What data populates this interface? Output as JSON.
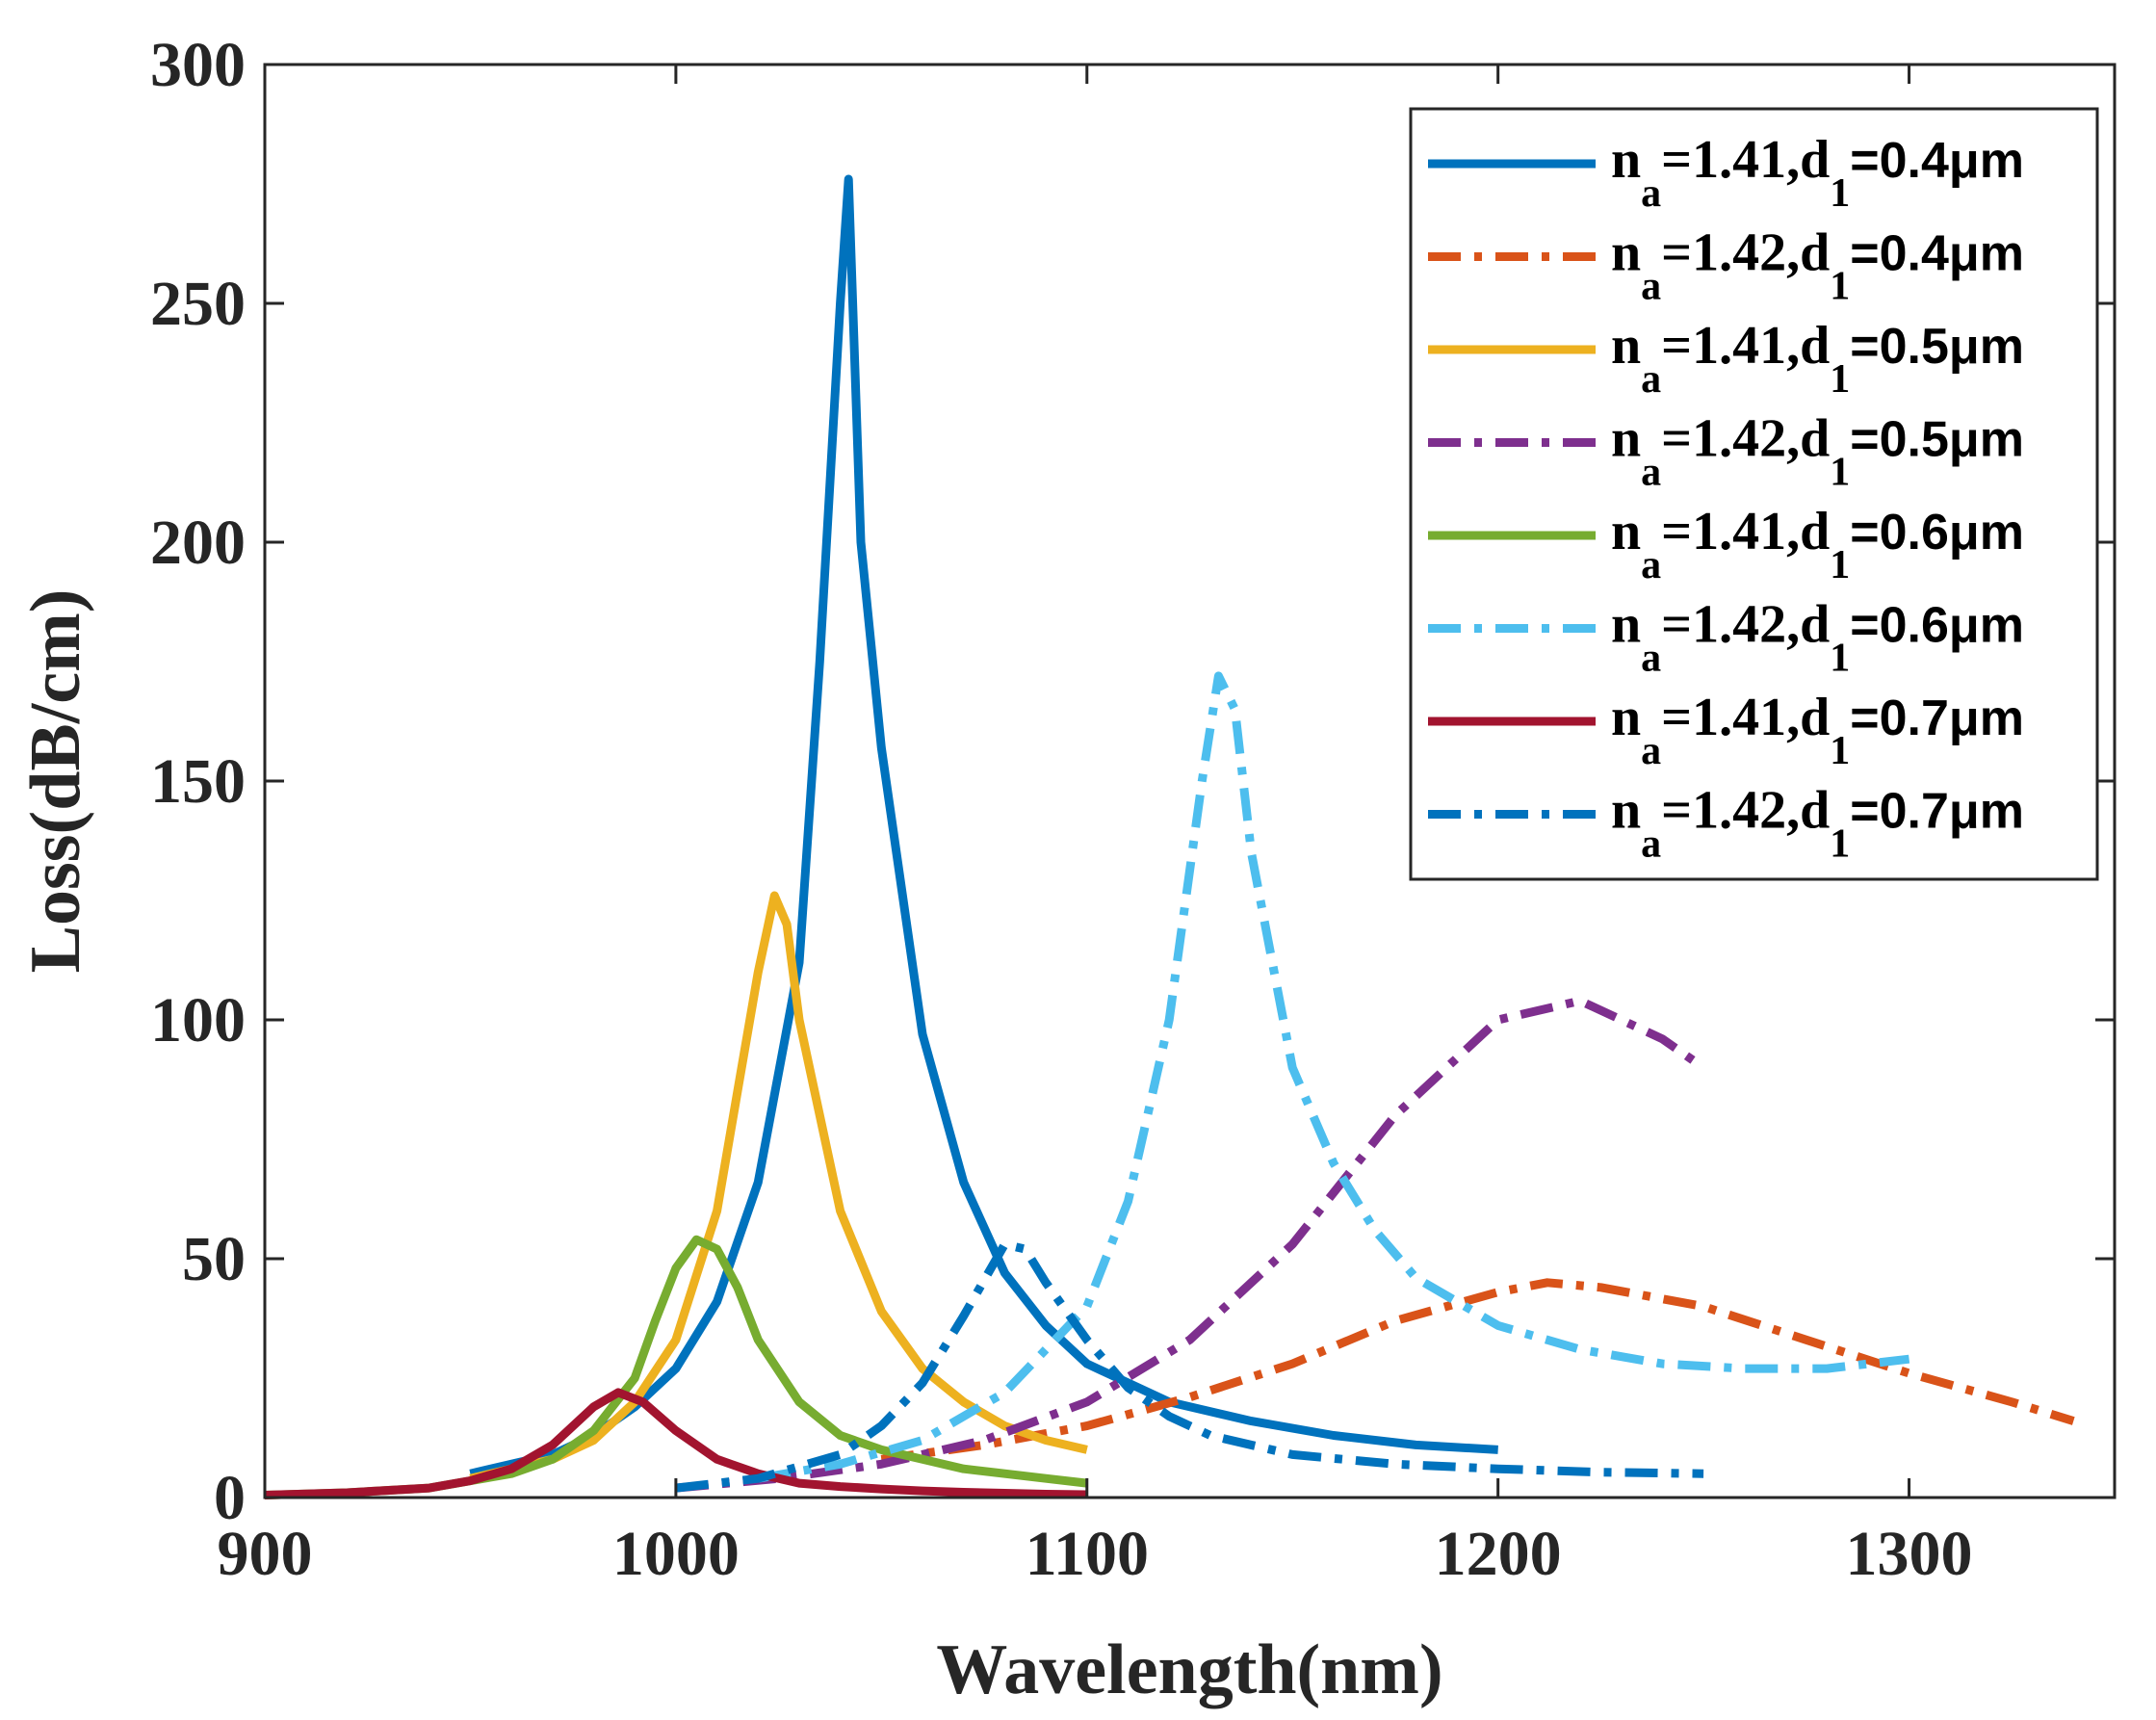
{
  "chart_data": {
    "type": "line",
    "title": "",
    "xlabel": "Wavelength(nm)",
    "ylabel": "Loss(dB/cm)",
    "xlim": [
      900,
      1350
    ],
    "ylim": [
      0,
      300
    ],
    "xticks": [
      900,
      1000,
      1100,
      1200,
      1300
    ],
    "yticks": [
      0,
      50,
      100,
      150,
      200,
      250,
      300
    ],
    "grid": false,
    "legend_position": "top-right",
    "series": [
      {
        "name": "n_a=1.41,d_1=0.4μm",
        "legend": {
          "n": "n",
          "n_sub": "a",
          "eq1": "=1.41,d",
          "d_sub": "1",
          "val": "=0.4μm"
        },
        "color": "#0072BD",
        "dash": "solid",
        "x": [
          950,
          970,
          980,
          990,
          1000,
          1010,
          1020,
          1030,
          1035,
          1040,
          1042,
          1045,
          1050,
          1060,
          1070,
          1080,
          1090,
          1100,
          1120,
          1140,
          1160,
          1180,
          1200
        ],
        "y": [
          5,
          9,
          13,
          19,
          27,
          41,
          66,
          112,
          175,
          250,
          276,
          200,
          157,
          97,
          66,
          47,
          36,
          28,
          20,
          16,
          13,
          11,
          10
        ]
      },
      {
        "name": "n_a=1.42,d_1=0.4μm",
        "legend": {
          "n": "n",
          "n_sub": "a",
          "eq1": "=1.42,d",
          "d_sub": "1",
          "val": "=0.4μm"
        },
        "color": "#D95319",
        "dash": "dashdot",
        "x": [
          1050,
          1075,
          1100,
          1125,
          1150,
          1175,
          1200,
          1212,
          1225,
          1250,
          1275,
          1300,
          1325,
          1340
        ],
        "y": [
          8,
          11,
          15,
          21,
          28,
          37,
          43,
          45,
          44,
          40,
          33,
          26,
          20,
          16
        ]
      },
      {
        "name": "n_a=1.41,d_1=0.5μm",
        "legend": {
          "n": "n",
          "n_sub": "a",
          "eq1": "=1.41,d",
          "d_sub": "1",
          "val": "=0.5μm"
        },
        "color": "#EDB120",
        "dash": "solid",
        "x": [
          950,
          970,
          980,
          990,
          1000,
          1010,
          1015,
          1020,
          1024,
          1027,
          1030,
          1040,
          1050,
          1060,
          1070,
          1080,
          1090,
          1100
        ],
        "y": [
          4,
          8,
          12,
          20,
          33,
          60,
          85,
          110,
          126,
          120,
          100,
          60,
          39,
          27,
          20,
          15,
          12,
          10
        ]
      },
      {
        "name": "n_a=1.42,d_1=0.5μm",
        "legend": {
          "n": "n",
          "n_sub": "a",
          "eq1": "=1.42,d",
          "d_sub": "1",
          "val": "=0.5μm"
        },
        "color": "#7E2F8E",
        "dash": "dashdot",
        "x": [
          1000,
          1025,
          1050,
          1075,
          1100,
          1125,
          1150,
          1175,
          1200,
          1220,
          1240,
          1250
        ],
        "y": [
          2,
          4,
          7,
          12,
          20,
          33,
          53,
          80,
          100,
          104,
          96,
          90
        ]
      },
      {
        "name": "n_a=1.41,d_1=0.6μm",
        "legend": {
          "n": "n",
          "n_sub": "a",
          "eq1": "=1.41,d",
          "d_sub": "1",
          "val": "=0.6μm"
        },
        "color": "#77AC30",
        "dash": "solid",
        "x": [
          900,
          920,
          940,
          960,
          970,
          980,
          990,
          995,
          1000,
          1005,
          1010,
          1015,
          1020,
          1030,
          1040,
          1050,
          1060,
          1070,
          1080,
          1090,
          1100
        ],
        "y": [
          0.5,
          1,
          2,
          5,
          8,
          14,
          25,
          37,
          48,
          54,
          52,
          44,
          33,
          20,
          13,
          10,
          8,
          6,
          5,
          4,
          3
        ]
      },
      {
        "name": "n_a=1.42,d_1=0.6μm",
        "legend": {
          "n": "n",
          "n_sub": "a",
          "eq1": "=1.42,d",
          "d_sub": "1",
          "val": "=0.6μm"
        },
        "color": "#4DBEEE",
        "dash": "dashdot",
        "x": [
          1020,
          1040,
          1060,
          1080,
          1100,
          1110,
          1120,
          1128,
          1132,
          1136,
          1140,
          1150,
          1160,
          1170,
          1180,
          1200,
          1220,
          1240,
          1260,
          1280,
          1300
        ],
        "y": [
          4,
          7,
          12,
          22,
          40,
          62,
          100,
          150,
          172,
          165,
          135,
          90,
          70,
          56,
          46,
          36,
          31,
          28,
          27,
          27,
          29
        ]
      },
      {
        "name": "n_a=1.41,d_1=0.7μm",
        "legend": {
          "n": "n",
          "n_sub": "a",
          "eq1": "=1.41,d",
          "d_sub": "1",
          "val": "=0.7μm"
        },
        "color": "#A2142F",
        "dash": "solid",
        "x": [
          900,
          920,
          940,
          950,
          960,
          970,
          980,
          986,
          992,
          1000,
          1010,
          1020,
          1030,
          1040,
          1050,
          1060,
          1070,
          1080,
          1090,
          1100
        ],
        "y": [
          0.5,
          1,
          2,
          3.5,
          6,
          11,
          19,
          22,
          20,
          14,
          8,
          5,
          3,
          2.3,
          1.8,
          1.4,
          1.1,
          0.9,
          0.7,
          0.6
        ]
      },
      {
        "name": "n_a=1.42,d_1=0.7μm",
        "legend": {
          "n": "n",
          "n_sub": "a",
          "eq1": "=1.42,d",
          "d_sub": "1",
          "val": "=0.7μm"
        },
        "color": "#0072BD",
        "dash": "dashdot",
        "x": [
          1000,
          1020,
          1040,
          1050,
          1060,
          1070,
          1080,
          1085,
          1090,
          1100,
          1110,
          1120,
          1130,
          1150,
          1175,
          1200,
          1225,
          1250
        ],
        "y": [
          2,
          4,
          9,
          15,
          24,
          38,
          53,
          52,
          45,
          33,
          23,
          17,
          13,
          9,
          7,
          6,
          5.3,
          5
        ]
      }
    ]
  }
}
